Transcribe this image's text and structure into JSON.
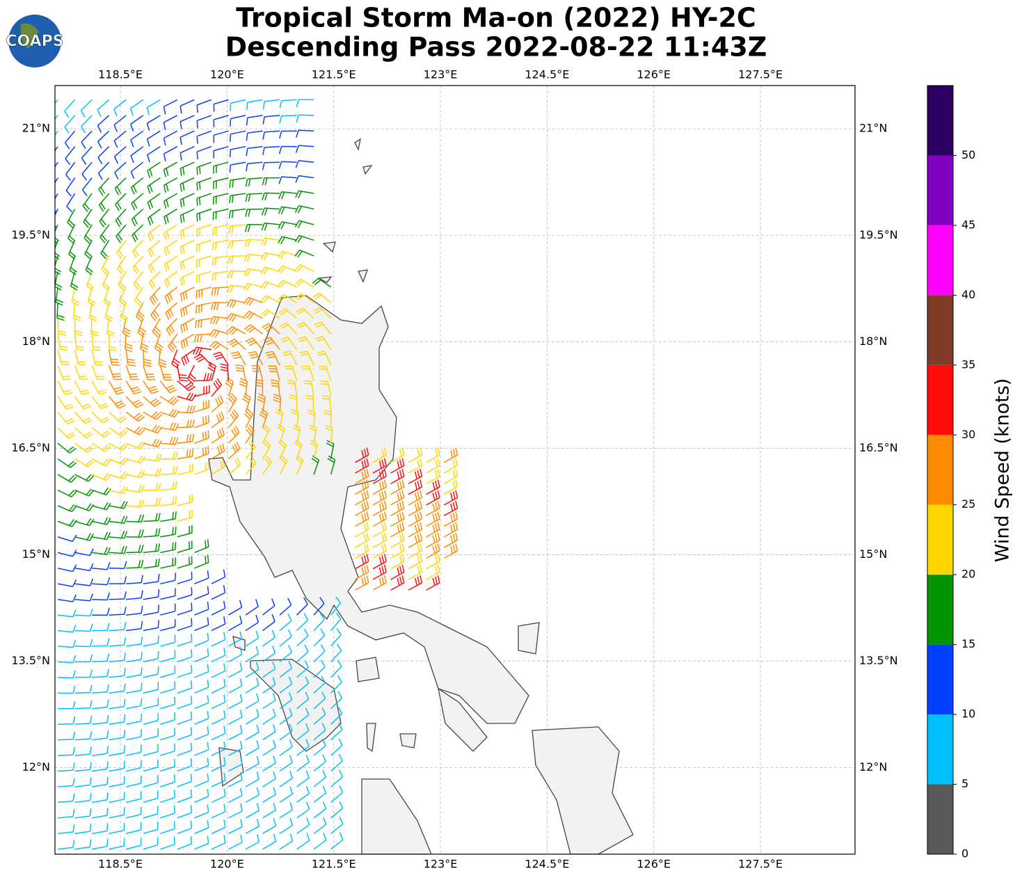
{
  "header": {
    "title": [
      "Tropical Storm Ma-on (2022) HY-2C",
      "Descending Pass 2022-08-22 11:43Z"
    ],
    "logo": "COAPS"
  },
  "map": {
    "xlim": [
      117.58,
      128.83
    ],
    "ylim": [
      10.78,
      21.61
    ],
    "xticks": [
      {
        "value": 118.5,
        "label": "118.5°E"
      },
      {
        "value": 120,
        "label": "120°E"
      },
      {
        "value": 121.5,
        "label": "121.5°E"
      },
      {
        "value": 123,
        "label": "123°E"
      },
      {
        "value": 124.5,
        "label": "124.5°E"
      },
      {
        "value": 126,
        "label": "126°E"
      },
      {
        "value": 127.5,
        "label": "127.5°E"
      }
    ],
    "yticks": [
      {
        "value": 21,
        "label": "21°N"
      },
      {
        "value": 19.5,
        "label": "19.5°N"
      },
      {
        "value": 18,
        "label": "18°N"
      },
      {
        "value": 16.5,
        "label": "16.5°N"
      },
      {
        "value": 15,
        "label": "15°N"
      },
      {
        "value": 13.5,
        "label": "13.5°N"
      },
      {
        "value": 12,
        "label": "12°N"
      }
    ],
    "grid": true
  },
  "colorbar": {
    "label": "Wind Speed (knots)",
    "lim": [
      0,
      55
    ],
    "bounds": [
      0,
      5,
      10,
      15,
      20,
      25,
      30,
      35,
      40,
      45,
      50,
      55
    ],
    "colors": [
      "#595959",
      "#00bfff",
      "#0040ff",
      "#009400",
      "#ffd700",
      "#ff8c00",
      "#ff0d0d",
      "#803c28",
      "#ff00ff",
      "#8000c0",
      "#2a0060"
    ],
    "ticks": [
      0,
      5,
      10,
      15,
      20,
      25,
      30,
      35,
      40,
      45,
      50
    ]
  }
}
